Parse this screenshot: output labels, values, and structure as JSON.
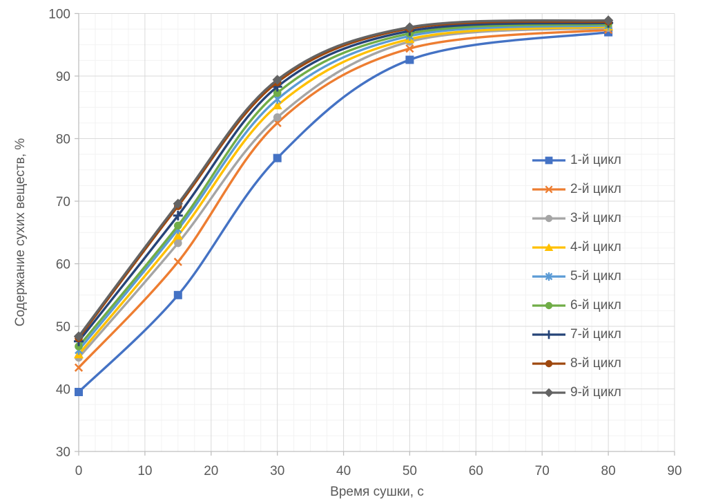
{
  "chart_data": {
    "type": "line",
    "title": "",
    "xlabel": "Время сушки, с",
    "ylabel": "Содержание сухих веществ, %",
    "x": [
      0,
      15,
      30,
      50,
      80
    ],
    "xlim": [
      0,
      90
    ],
    "ylim": [
      30,
      100
    ],
    "x_ticks": [
      0,
      10,
      20,
      30,
      40,
      50,
      60,
      70,
      80,
      90
    ],
    "y_ticks": [
      30,
      40,
      50,
      60,
      70,
      80,
      90,
      100
    ],
    "minor_step_x": 2.5,
    "minor_step_y": 2.5,
    "grid": true,
    "smooth_lines": true,
    "legend_position": "right-inside",
    "series": [
      {
        "name": "1-й цикл",
        "color": "#4472C4",
        "marker": "square",
        "values": [
          39.5,
          55.0,
          76.9,
          92.6,
          97.0
        ]
      },
      {
        "name": "2-й цикл",
        "color": "#ED7D31",
        "marker": "x",
        "values": [
          43.4,
          60.3,
          82.5,
          94.4,
          97.4
        ]
      },
      {
        "name": "3-й цикл",
        "color": "#A5A5A5",
        "marker": "circle",
        "values": [
          45.0,
          63.3,
          83.4,
          95.5,
          97.7
        ]
      },
      {
        "name": "4-й цикл",
        "color": "#FFC000",
        "marker": "triangle",
        "values": [
          45.5,
          64.5,
          85.3,
          95.9,
          97.9
        ]
      },
      {
        "name": "5-й цикл",
        "color": "#5B9BD5",
        "marker": "star",
        "values": [
          46.2,
          65.5,
          86.3,
          96.4,
          98.1
        ]
      },
      {
        "name": "6-й цикл",
        "color": "#70AD47",
        "marker": "circle",
        "values": [
          46.8,
          66.1,
          87.3,
          96.8,
          98.3
        ]
      },
      {
        "name": "7-й цикл",
        "color": "#264478",
        "marker": "plus",
        "values": [
          47.6,
          67.7,
          88.3,
          97.2,
          98.5
        ]
      },
      {
        "name": "8-й цикл",
        "color": "#9E480E",
        "marker": "circle",
        "values": [
          48.1,
          69.2,
          89.0,
          97.6,
          98.7
        ]
      },
      {
        "name": "9-й цикл",
        "color": "#636363",
        "marker": "diamond",
        "values": [
          48.4,
          69.6,
          89.4,
          97.8,
          98.9
        ]
      }
    ],
    "colors": {
      "background": "#FFFFFF",
      "grid_major": "#D9D9D9",
      "grid_minor": "#F2F2F2",
      "axis_line": "#BFBFBF",
      "tick_text": "#595959",
      "axis_title_text": "#595959",
      "legend_text": "#595959"
    }
  }
}
